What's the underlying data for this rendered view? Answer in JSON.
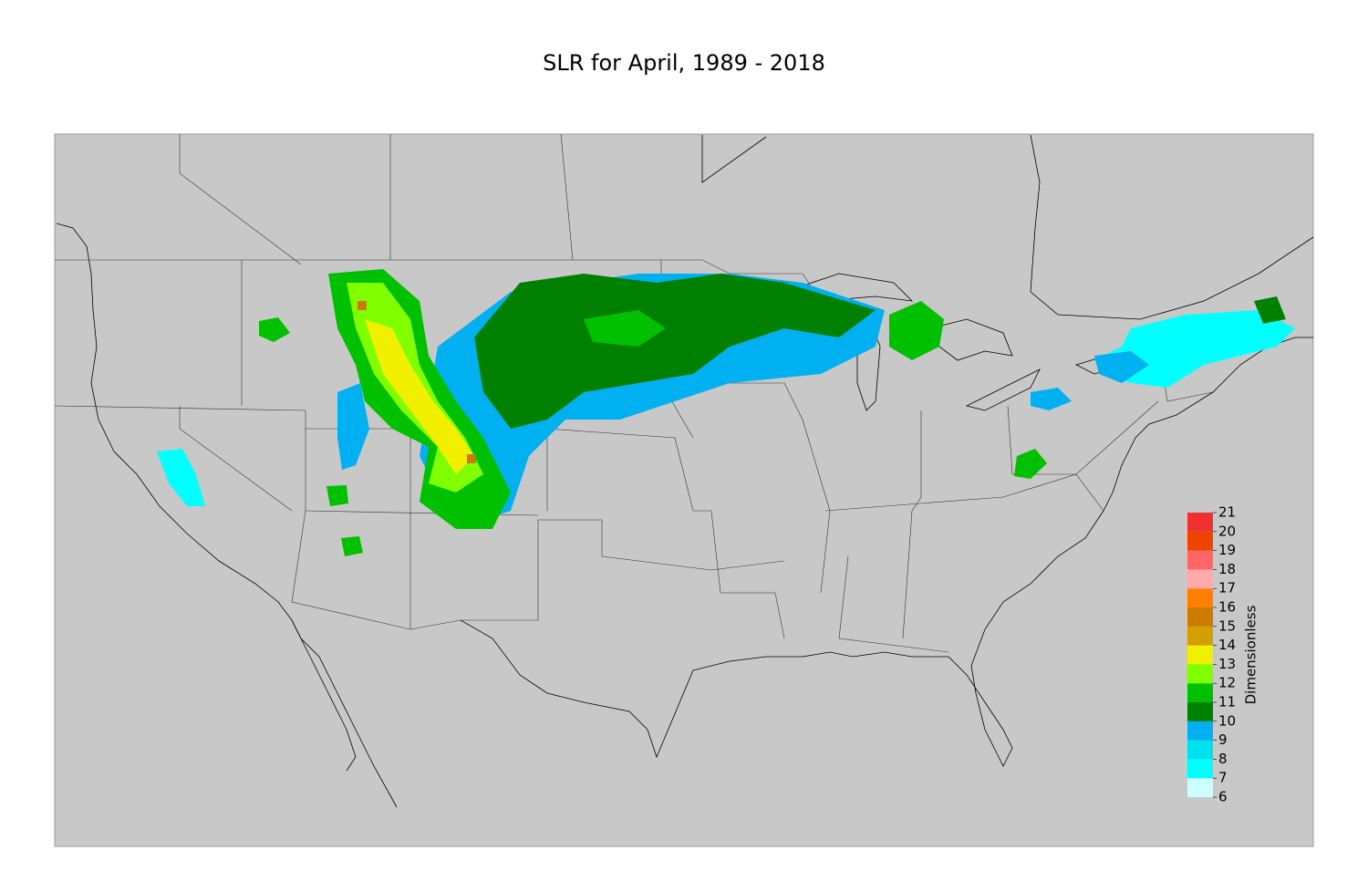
{
  "map": {
    "title": "SLR for April, 1989 - 2018",
    "colorbar": {
      "label": "Dimensionless",
      "ticks": [
        6,
        7,
        8,
        9,
        10,
        11,
        12,
        13,
        14,
        15,
        16,
        17,
        18,
        19,
        20,
        21
      ],
      "colors": [
        "#ccffff",
        "#00ffff",
        "#00e0ee",
        "#00b0f0",
        "#008000",
        "#00c000",
        "#80ff00",
        "#f0f000",
        "#d4a000",
        "#cc7a00",
        "#ff8000",
        "#ffaaaa",
        "#ff6666",
        "#ee4400",
        "#ee3030",
        "#cc0000"
      ]
    }
  }
}
